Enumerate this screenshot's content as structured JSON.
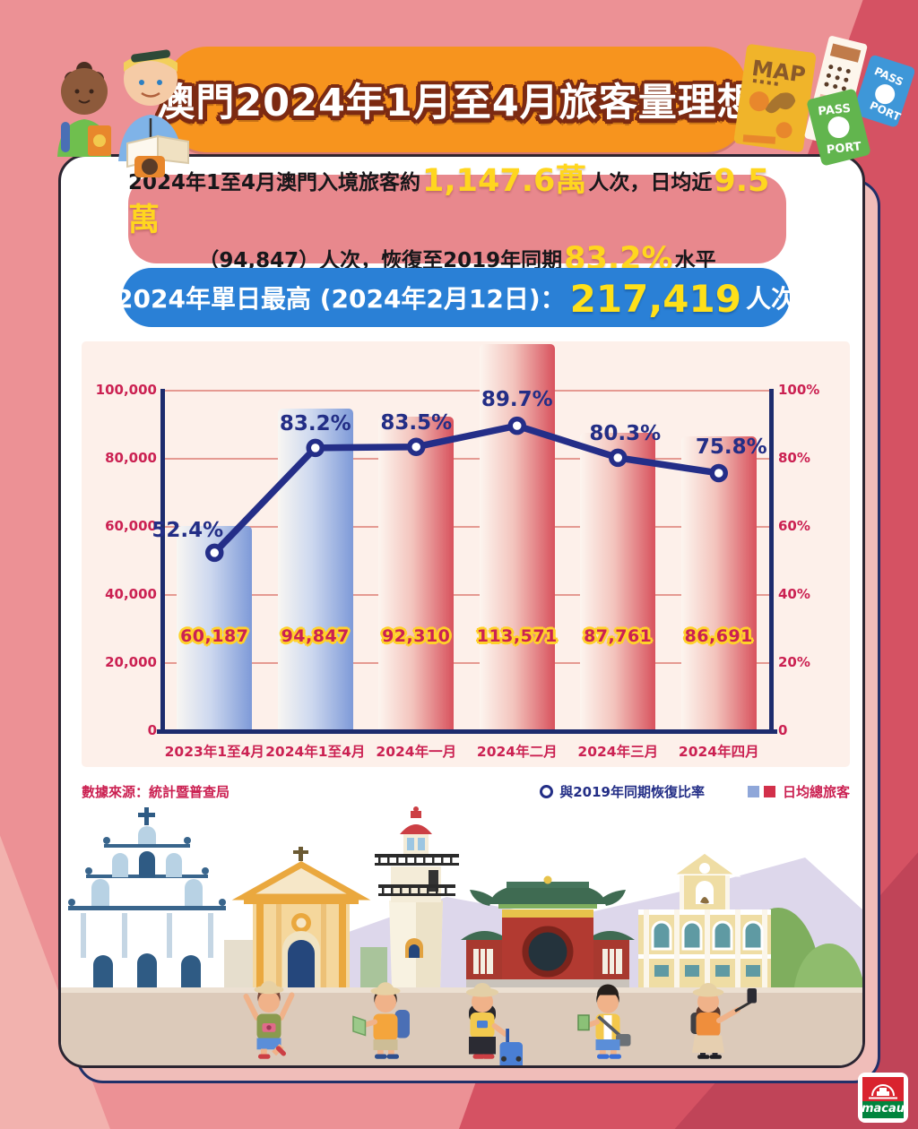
{
  "title": "澳門2024年1月至4月旅客量理想",
  "summary_box": {
    "line1_prefix": "2024年1至4月澳門入境旅客約",
    "line1_value1": "1,147.6萬",
    "line1_mid": "人次，日均近",
    "line1_value2": "9.5萬",
    "line2_prefix": "（94,847）人次，恢復至2019年同期",
    "line2_value": "83.2%",
    "line2_suffix": "水平"
  },
  "peak_box": {
    "label": "2024年單日最高 (2024年2月12日)：",
    "value": "217,419",
    "suffix": "人次"
  },
  "chart_data": {
    "type": "bar+line",
    "categories": [
      "2023年1至4月",
      "2024年1至4月",
      "2024年一月",
      "2024年二月",
      "2024年三月",
      "2024年四月"
    ],
    "series": [
      {
        "name": "日均總旅客",
        "type": "bar",
        "values": [
          60187,
          94847,
          92310,
          113571,
          87761,
          86691
        ],
        "labels": [
          "60,187",
          "94,847",
          "92,310",
          "113,571",
          "87,761",
          "86,691"
        ],
        "color_groups": [
          "blue",
          "blue",
          "red",
          "red",
          "red",
          "red"
        ]
      },
      {
        "name": "與2019年同期恢復比率",
        "type": "line",
        "values": [
          52.4,
          83.2,
          83.5,
          89.7,
          80.3,
          75.8
        ],
        "labels": [
          "52.4%",
          "83.2%",
          "83.5%",
          "89.7%",
          "80.3%",
          "75.8%"
        ]
      }
    ],
    "left_axis": {
      "max": 100000,
      "ticks": [
        "100,000",
        "80,000",
        "60,000",
        "40,000",
        "20,000",
        "0"
      ]
    },
    "right_axis": {
      "max": 100,
      "ticks": [
        "100%",
        "80%",
        "60%",
        "40%",
        "20%",
        "0"
      ]
    },
    "grid": true,
    "legend_position": "bottom"
  },
  "legend": {
    "source": "數據來源：統計暨普查局",
    "line_label": "與2019年同期恢復比率",
    "bar_label": "日均總旅客"
  },
  "header_art": {
    "map_label": "MAP",
    "green_passport_top": "PASS",
    "green_passport_bottom": "PORT",
    "blue_passport_top": "PASS",
    "blue_passport_bottom": "PORT"
  },
  "footer_logo": {
    "text": "macau"
  },
  "colors": {
    "background_pink": "#ec9195",
    "background_red": "#d55263",
    "banner_orange": "#f7941e",
    "summary_box_pink": "#e8888d",
    "peak_pill_blue": "#2a80d6",
    "highlight_yellow": "#ffd61f",
    "chart_panel_pink": "#fdf0ea",
    "bar_blue": "#7e9ad8",
    "bar_red": "#d8525d",
    "line_navy": "#232e86",
    "axis_crimson": "#cb2152",
    "legend_square_blue": "#8fa7d9",
    "legend_square_red": "#d2304a"
  }
}
